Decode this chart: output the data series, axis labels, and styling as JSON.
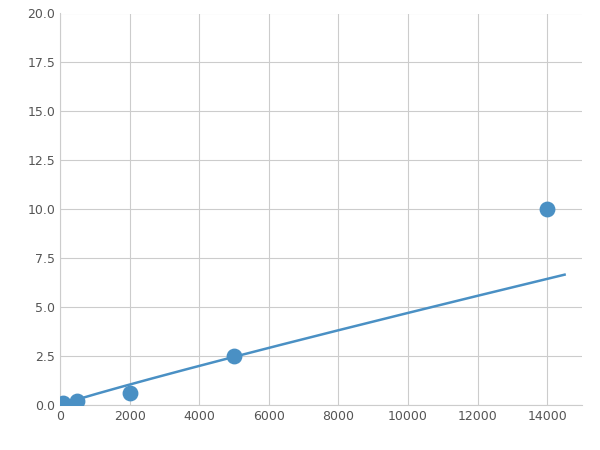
{
  "x_points": [
    100,
    500,
    2000,
    5000,
    14000
  ],
  "y_points": [
    0.1,
    0.2,
    0.6,
    2.5,
    10.0
  ],
  "line_color": "#4a90c4",
  "marker_color": "#4a90c4",
  "marker_size": 6,
  "line_width": 1.8,
  "xlim": [
    0,
    15000
  ],
  "ylim": [
    0,
    20.0
  ],
  "xticks": [
    0,
    2000,
    4000,
    6000,
    8000,
    10000,
    12000,
    14000
  ],
  "yticks": [
    0.0,
    2.5,
    5.0,
    7.5,
    10.0,
    12.5,
    15.0,
    17.5,
    20.0
  ],
  "grid_color": "#cccccc",
  "background_color": "#ffffff",
  "fig_width": 6.0,
  "fig_height": 4.5,
  "power_a": 2.3e-05,
  "power_b": 1.55
}
